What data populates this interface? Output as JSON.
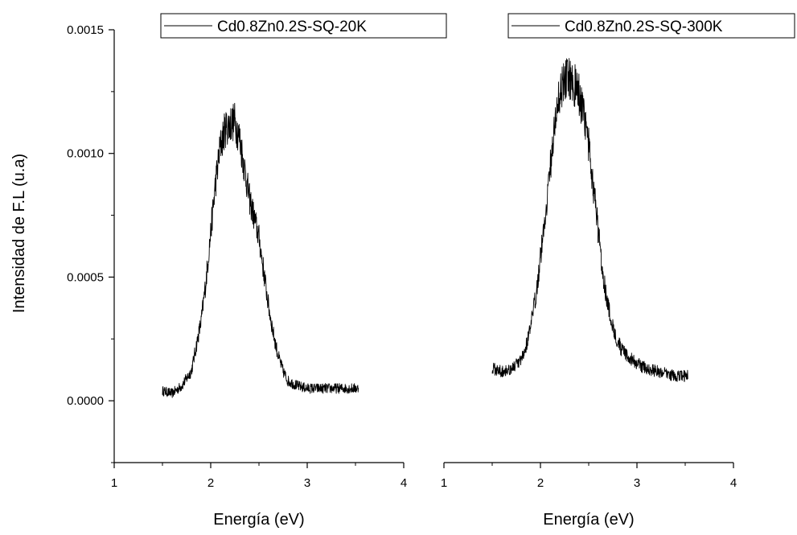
{
  "chart_data": [
    {
      "type": "line",
      "title": "",
      "xlabel": "Energía (eV)",
      "ylabel": "Intensidad de F.L (u.a)",
      "xlim": [
        1,
        4
      ],
      "ylim": [
        -0.00025,
        0.0015
      ],
      "xticks": [
        "1",
        "2",
        "3",
        "4"
      ],
      "yticks": [
        "0.0000",
        "0.0005",
        "0.0010",
        "0.0015"
      ],
      "grid": false,
      "legend_position": "top-right",
      "series": [
        {
          "name": "Cd0.8Zn0.2S-SQ-20K",
          "color": "#000000",
          "x": [
            1.5,
            1.6,
            1.7,
            1.8,
            1.85,
            1.9,
            1.95,
            2.0,
            2.05,
            2.1,
            2.15,
            2.2,
            2.25,
            2.3,
            2.35,
            2.4,
            2.45,
            2.5,
            2.55,
            2.6,
            2.65,
            2.7,
            2.75,
            2.8,
            2.9,
            3.0,
            3.2,
            3.4,
            3.53
          ],
          "values": [
            4e-05,
            3e-05,
            6e-05,
            0.00012,
            0.00022,
            0.00032,
            0.00048,
            0.00068,
            0.00088,
            0.00103,
            0.0011,
            0.00112,
            0.00113,
            0.00106,
            0.00094,
            0.00082,
            0.00074,
            0.00066,
            0.00052,
            0.00038,
            0.00027,
            0.00018,
            0.00012,
            8e-05,
            6e-05,
            5e-05,
            5e-05,
            5e-05,
            5e-05
          ]
        }
      ]
    },
    {
      "type": "line",
      "title": "",
      "xlabel": "Energía (eV)",
      "ylabel": "",
      "xlim": [
        1,
        4
      ],
      "ylim": [
        -0.00025,
        0.0015
      ],
      "xticks": [
        "1",
        "2",
        "3",
        "4"
      ],
      "grid": false,
      "legend_position": "top-right",
      "series": [
        {
          "name": "Cd0.8Zn0.2S-SQ-300K",
          "color": "#000000",
          "x": [
            1.5,
            1.6,
            1.7,
            1.8,
            1.85,
            1.9,
            1.95,
            2.0,
            2.05,
            2.1,
            2.15,
            2.2,
            2.25,
            2.3,
            2.35,
            2.4,
            2.45,
            2.5,
            2.55,
            2.6,
            2.65,
            2.7,
            2.75,
            2.8,
            2.85,
            2.9,
            3.0,
            3.1,
            3.2,
            3.3,
            3.4,
            3.53
          ],
          "values": [
            0.00013,
            0.00012,
            0.00013,
            0.00016,
            0.00022,
            0.0003,
            0.00042,
            0.00058,
            0.00075,
            0.00094,
            0.00112,
            0.00125,
            0.0013,
            0.00131,
            0.00128,
            0.00124,
            0.00115,
            0.00103,
            0.00086,
            0.00068,
            0.00051,
            0.00038,
            0.0003,
            0.00024,
            0.0002,
            0.00018,
            0.00015,
            0.00013,
            0.00012,
            0.00011,
            0.0001,
            0.0001
          ]
        }
      ]
    }
  ]
}
